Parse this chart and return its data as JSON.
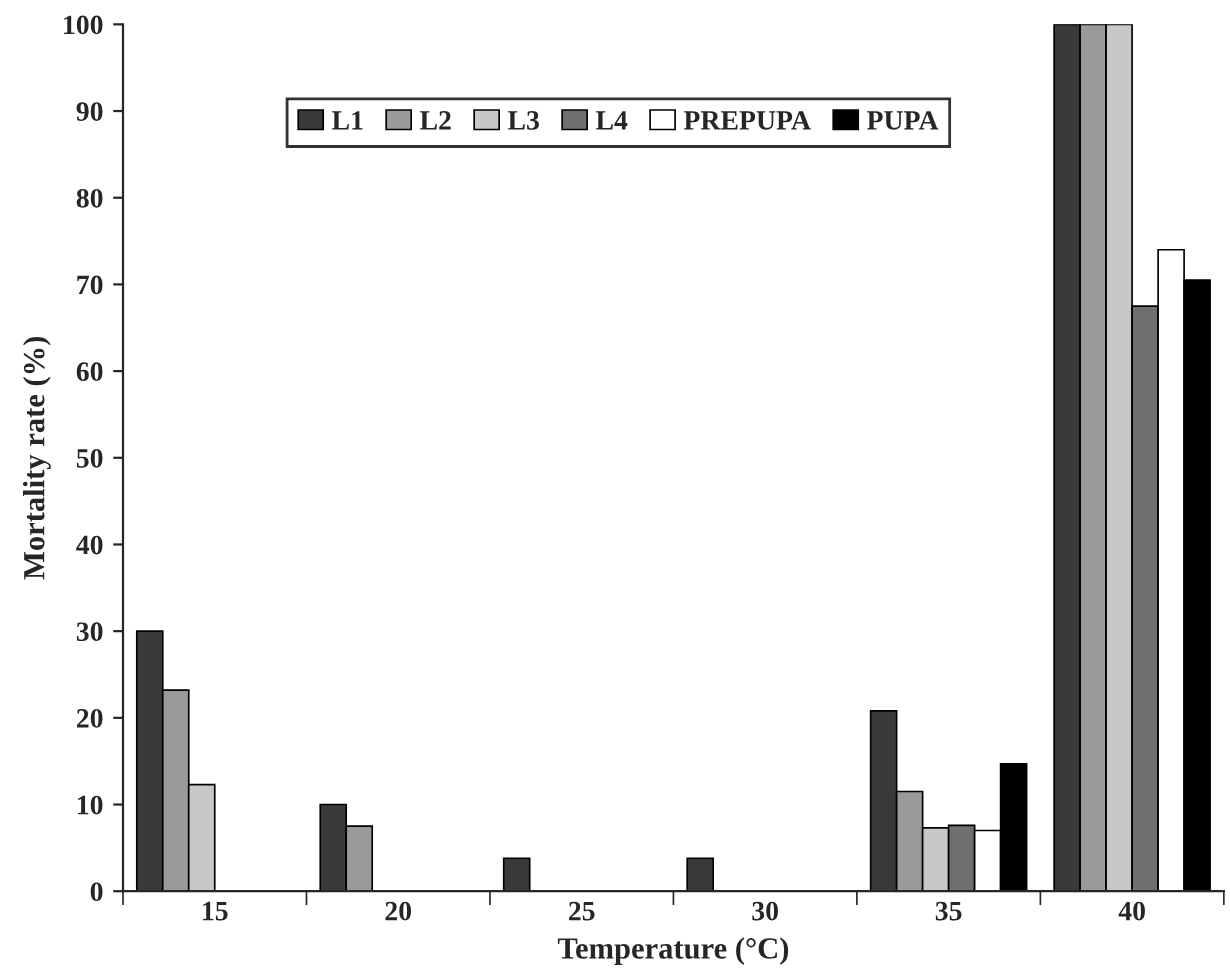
{
  "chart_data": {
    "type": "bar",
    "xlabel": "Temperature (°C)",
    "ylabel": "Mortality rate (%)",
    "categories": [
      "15",
      "20",
      "25",
      "30",
      "35",
      "40"
    ],
    "series": [
      {
        "name": "L1",
        "color": "#3a3a3a",
        "values": [
          30,
          10,
          3.8,
          3.8,
          20.8,
          100
        ]
      },
      {
        "name": "L2",
        "color": "#9a9a9a",
        "values": [
          23.2,
          7.5,
          null,
          null,
          11.5,
          100
        ]
      },
      {
        "name": "L3",
        "color": "#c8c8c8",
        "values": [
          12.3,
          null,
          null,
          null,
          7.3,
          100
        ]
      },
      {
        "name": "L4",
        "color": "#707070",
        "values": [
          null,
          null,
          null,
          null,
          7.6,
          67.5
        ]
      },
      {
        "name": "PREPUPA",
        "color": "#ffffff",
        "values": [
          null,
          null,
          null,
          null,
          7,
          74
        ]
      },
      {
        "name": "PUPA",
        "color": "#000000",
        "values": [
          null,
          null,
          null,
          null,
          14.7,
          70.5
        ]
      }
    ],
    "ylim": [
      0,
      100
    ],
    "yticks": [
      0,
      10,
      20,
      30,
      40,
      50,
      60,
      70,
      80,
      90,
      100
    ],
    "legend": "top",
    "grid": false
  }
}
